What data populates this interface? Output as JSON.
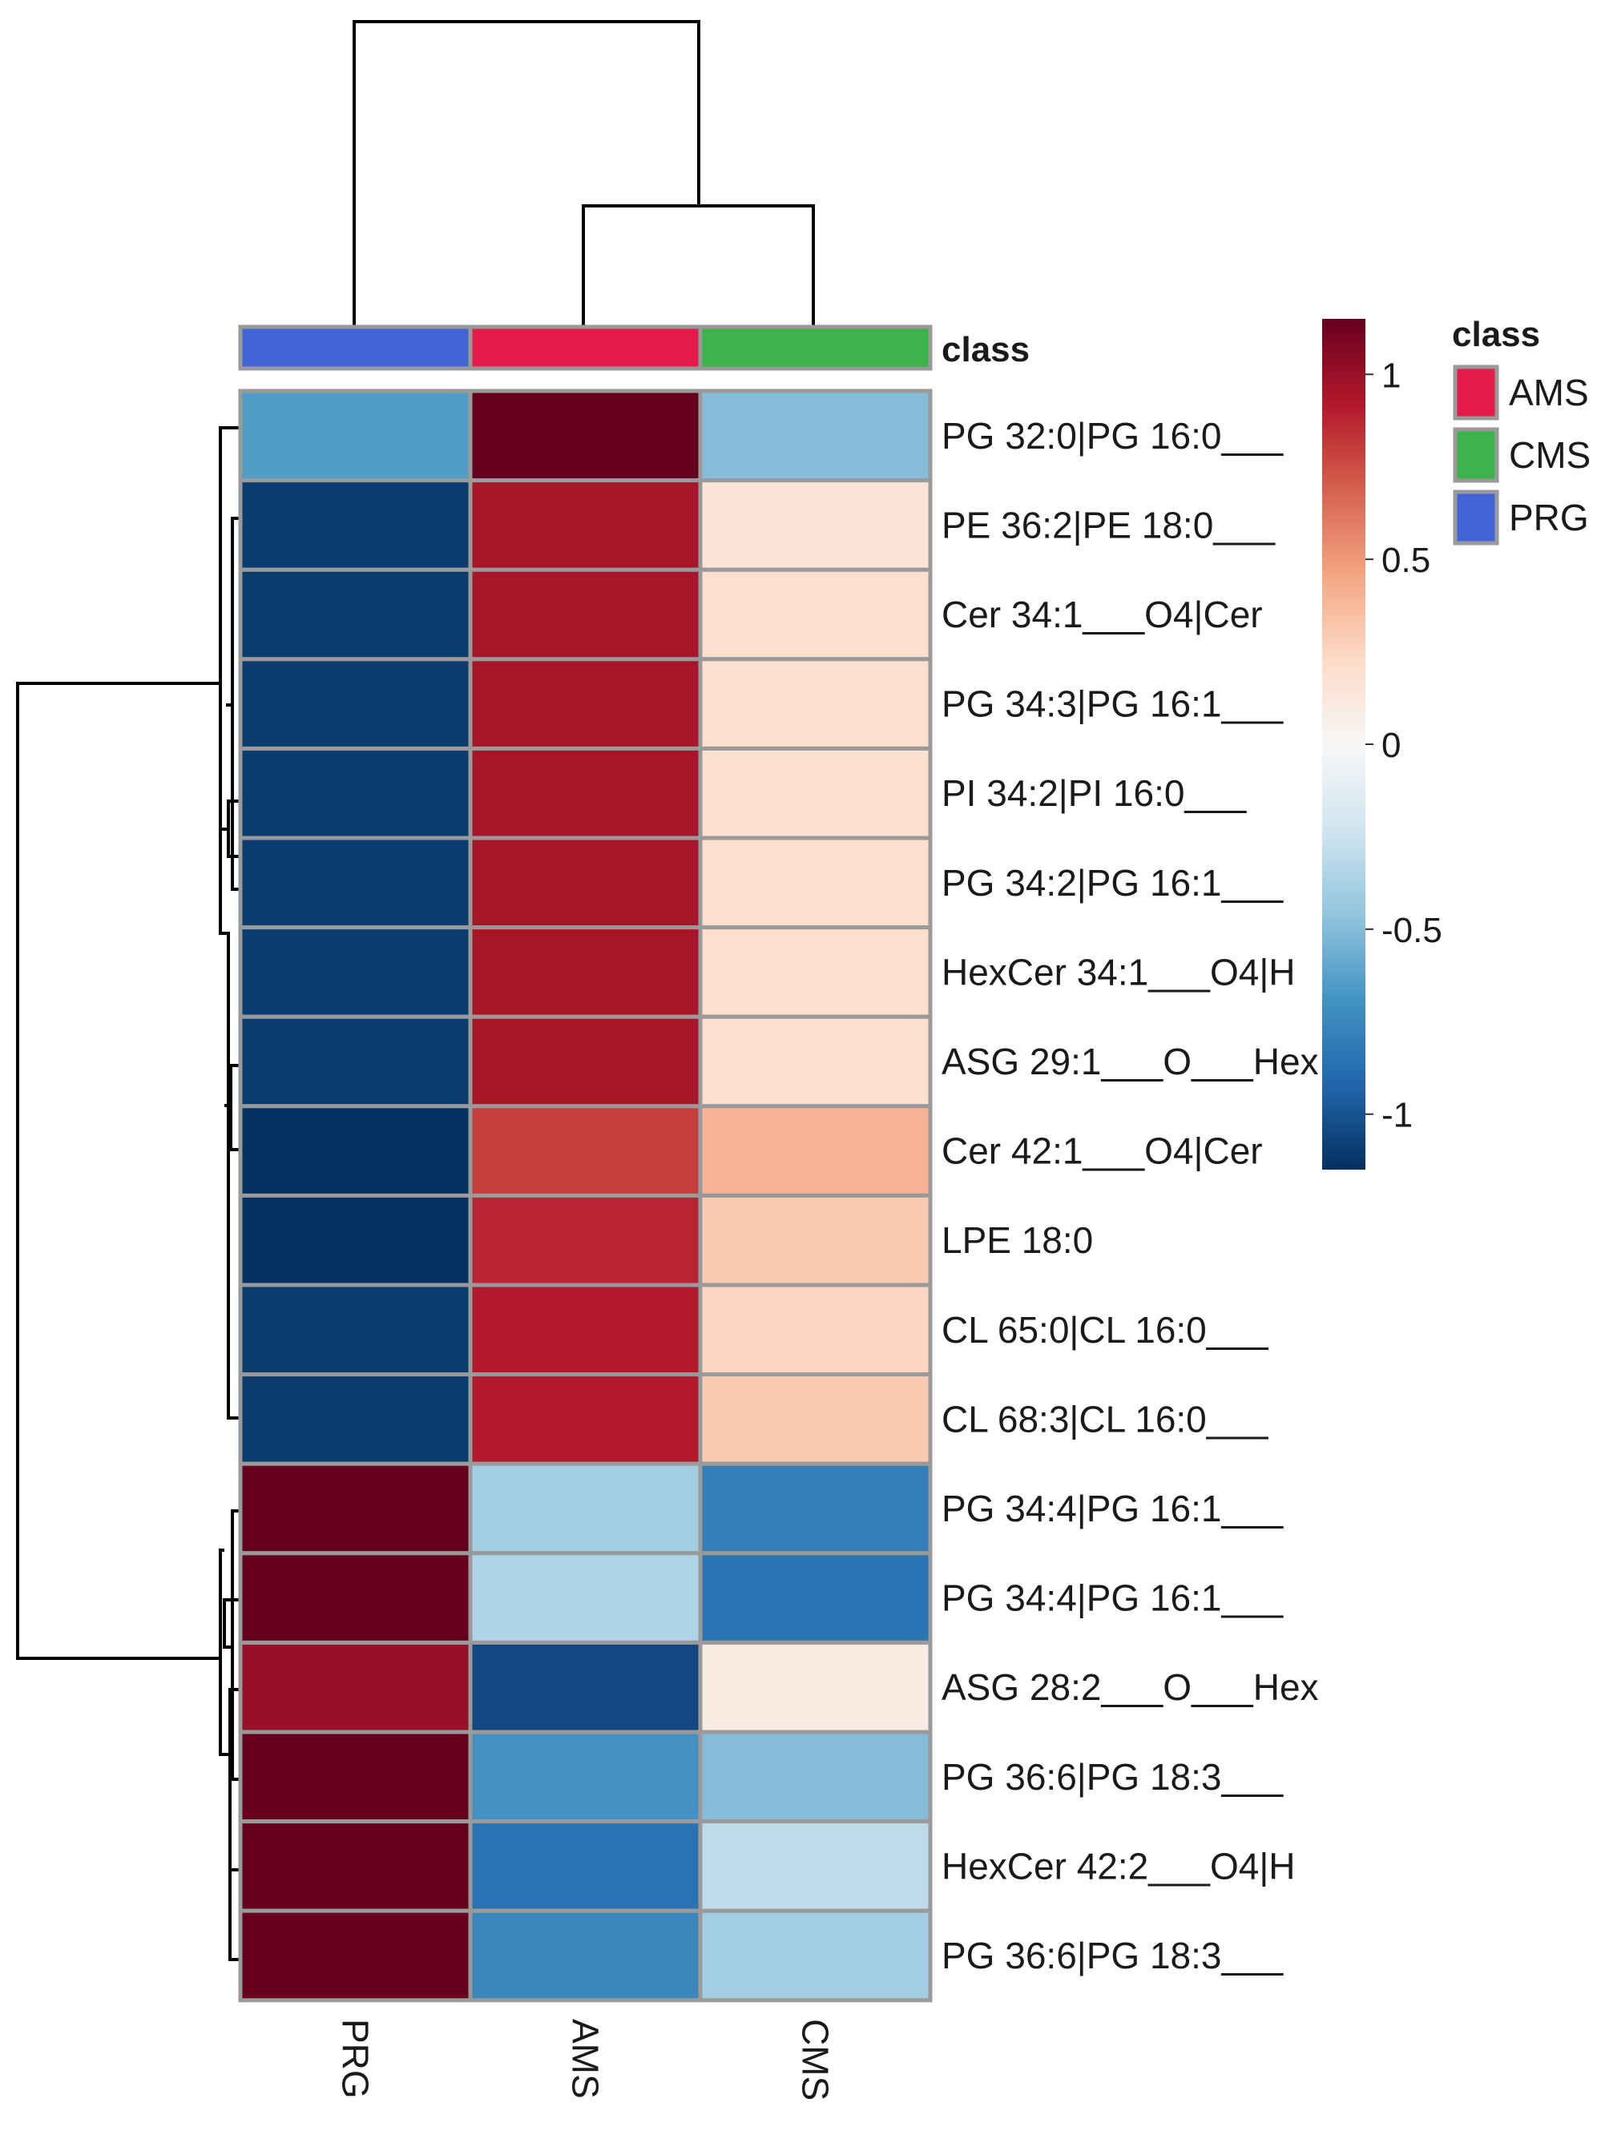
{
  "chart_data": {
    "type": "heatmap",
    "title": "",
    "columns": [
      "PRG",
      "AMS",
      "CMS"
    ],
    "rows": [
      "PG 32:0|PG 16:0___",
      "PE 36:2|PE 18:0___",
      "Cer 34:1___O4|Cer",
      "PG 34:3|PG 16:1___",
      "PI 34:2|PI 16:0___",
      "PG 34:2|PG 16:1___",
      "HexCer 34:1___O4|H",
      "ASG 29:1___O___Hex",
      "Cer 42:1___O4|Cer",
      "LPE 18:0",
      "CL 65:0|CL 16:0___",
      "CL 68:3|CL 16:0___",
      "PG 34:4|PG 16:1___",
      "PG 34:4|PG 16:1___",
      "ASG 28:2___O___Hex",
      "PG 36:6|PG 18:3___",
      "HexCer 42:2___O4|H",
      "PG 36:6|PG 18:3___"
    ],
    "values": [
      [
        -0.65,
        1.15,
        -0.5
      ],
      [
        -1.1,
        0.95,
        0.15
      ],
      [
        -1.1,
        0.95,
        0.2
      ],
      [
        -1.1,
        0.95,
        0.2
      ],
      [
        -1.1,
        0.95,
        0.18
      ],
      [
        -1.1,
        0.95,
        0.2
      ],
      [
        -1.1,
        0.95,
        0.2
      ],
      [
        -1.1,
        0.95,
        0.2
      ],
      [
        -1.15,
        0.8,
        0.4
      ],
      [
        -1.15,
        0.88,
        0.3
      ],
      [
        -1.1,
        0.92,
        0.25
      ],
      [
        -1.1,
        0.92,
        0.3
      ],
      [
        1.15,
        -0.4,
        -0.8
      ],
      [
        1.15,
        -0.35,
        -0.85
      ],
      [
        1.0,
        -1.05,
        0.1
      ],
      [
        1.15,
        -0.7,
        -0.5
      ],
      [
        1.15,
        -0.85,
        -0.3
      ],
      [
        1.15,
        -0.75,
        -0.4
      ]
    ],
    "annotation": {
      "title": "class",
      "column_classes": [
        "PRG",
        "AMS",
        "CMS"
      ],
      "legend": [
        {
          "label": "AMS",
          "color": "#e6194b"
        },
        {
          "label": "CMS",
          "color": "#3cb44b"
        },
        {
          "label": "PRG",
          "color": "#4363d8"
        }
      ]
    },
    "colorbar": {
      "range": [
        -1.15,
        1.15
      ],
      "ticks": [
        1,
        0.5,
        0,
        -0.5,
        -1
      ],
      "tick_labels": [
        "1",
        "0.5",
        "0",
        "-0.5",
        "-1"
      ],
      "stops": [
        "#053061",
        "#2166ac",
        "#4393c3",
        "#92c5de",
        "#d1e5f0",
        "#f7f7f7",
        "#fddbc7",
        "#f4a582",
        "#d6604d",
        "#b2182b",
        "#67001f"
      ]
    },
    "row_clusters": "top group rows 1-12, bottom group rows 13-18",
    "column_dendrogram": "PRG separate; AMS and CMS merged first"
  }
}
